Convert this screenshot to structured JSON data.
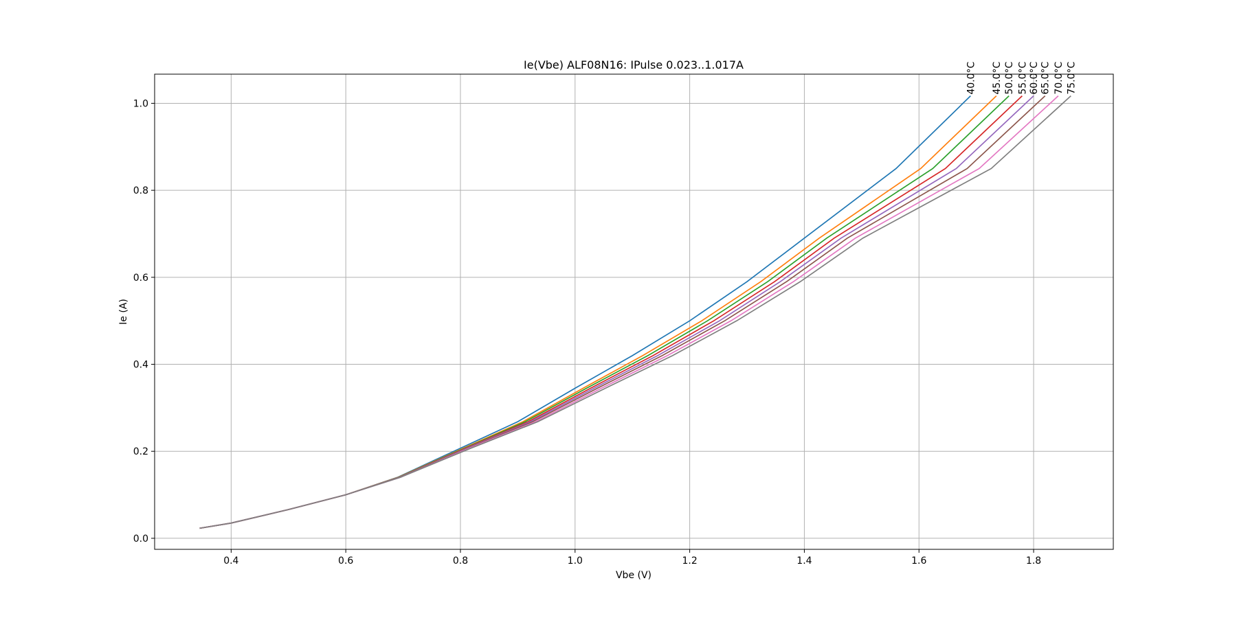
{
  "chart_data": {
    "type": "line",
    "title": "Ie(Vbe) ALF08N16: IPulse 0.023..1.017A",
    "x_label": "Vbe (V)",
    "y_label": "Ie (A)",
    "xlim": [
      0.2665,
      1.939
    ],
    "ylim": [
      -0.0254,
      1.067
    ],
    "xticks": [
      0.4,
      0.6,
      0.8,
      {
        "value": 1,
        "label": "1.0"
      },
      1.2,
      1.4,
      1.6,
      1.8
    ],
    "yticks": [
      {
        "value": 0,
        "label": "0.0"
      },
      0.2,
      0.4,
      0.6,
      0.8,
      {
        "value": 1,
        "label": "1.0"
      }
    ],
    "grid": true,
    "series": [
      {
        "name": "40.0°C",
        "color": "#1f77b4",
        "x": [
          0.345,
          0.4,
          0.5,
          0.6,
          0.69,
          0.8,
          0.9,
          1.0,
          1.1,
          1.2,
          1.3,
          1.4,
          1.56,
          1.69
        ],
        "values": [
          0.023,
          0.035,
          0.066,
          0.1,
          0.14,
          0.207,
          0.268,
          0.345,
          0.42,
          0.5,
          0.59,
          0.69,
          0.85,
          1.017
        ]
      },
      {
        "name": "45.0°C",
        "color": "#ff7f0e",
        "x": [
          0.345,
          0.4,
          0.5,
          0.6,
          0.691,
          0.805,
          0.909,
          1.014,
          1.118,
          1.221,
          1.324,
          1.426,
          1.603,
          1.735
        ],
        "values": [
          0.023,
          0.035,
          0.066,
          0.1,
          0.14,
          0.207,
          0.268,
          0.345,
          0.42,
          0.5,
          0.59,
          0.69,
          0.85,
          1.017
        ]
      },
      {
        "name": "50.0°C",
        "color": "#2ca02c",
        "x": [
          0.345,
          0.4,
          0.5,
          0.6,
          0.692,
          0.807,
          0.913,
          1.02,
          1.127,
          1.231,
          1.336,
          1.439,
          1.624,
          1.757
        ],
        "values": [
          0.023,
          0.035,
          0.066,
          0.1,
          0.14,
          0.207,
          0.268,
          0.345,
          0.42,
          0.5,
          0.59,
          0.69,
          0.85,
          1.017
        ]
      },
      {
        "name": "55.0°C",
        "color": "#d62728",
        "x": [
          0.345,
          0.4,
          0.5,
          0.6,
          0.693,
          0.809,
          0.918,
          1.027,
          1.136,
          1.242,
          1.348,
          1.452,
          1.646,
          1.78
        ],
        "values": [
          0.023,
          0.035,
          0.066,
          0.1,
          0.14,
          0.207,
          0.268,
          0.345,
          0.42,
          0.5,
          0.59,
          0.69,
          0.85,
          1.017
        ]
      },
      {
        "name": "60.0°C",
        "color": "#9467bd",
        "x": [
          0.345,
          0.4,
          0.5,
          0.6,
          0.693,
          0.811,
          0.922,
          1.033,
          1.144,
          1.252,
          1.358,
          1.464,
          1.665,
          1.8
        ],
        "values": [
          0.023,
          0.035,
          0.066,
          0.1,
          0.14,
          0.207,
          0.268,
          0.345,
          0.42,
          0.5,
          0.59,
          0.69,
          0.85,
          1.017
        ]
      },
      {
        "name": "65.0°C",
        "color": "#8c564b",
        "x": [
          0.345,
          0.4,
          0.5,
          0.6,
          0.694,
          0.813,
          0.926,
          1.039,
          1.152,
          1.261,
          1.369,
          1.475,
          1.684,
          1.82
        ],
        "values": [
          0.023,
          0.035,
          0.066,
          0.1,
          0.14,
          0.207,
          0.268,
          0.345,
          0.42,
          0.5,
          0.59,
          0.69,
          0.85,
          1.017
        ]
      },
      {
        "name": "70.0°C",
        "color": "#e377c2",
        "x": [
          0.345,
          0.4,
          0.5,
          0.6,
          0.695,
          0.815,
          0.931,
          1.046,
          1.161,
          1.272,
          1.381,
          1.489,
          1.705,
          1.843
        ],
        "values": [
          0.023,
          0.035,
          0.066,
          0.1,
          0.14,
          0.207,
          0.268,
          0.345,
          0.42,
          0.5,
          0.59,
          0.69,
          0.85,
          1.017
        ]
      },
      {
        "name": "75.0°C",
        "color": "#7f7f7f",
        "x": [
          0.345,
          0.4,
          0.5,
          0.6,
          0.695,
          0.818,
          0.935,
          1.053,
          1.17,
          1.282,
          1.393,
          1.502,
          1.726,
          1.865
        ],
        "values": [
          0.023,
          0.035,
          0.066,
          0.1,
          0.14,
          0.207,
          0.268,
          0.345,
          0.42,
          0.5,
          0.59,
          0.69,
          0.85,
          1.017
        ]
      }
    ]
  }
}
